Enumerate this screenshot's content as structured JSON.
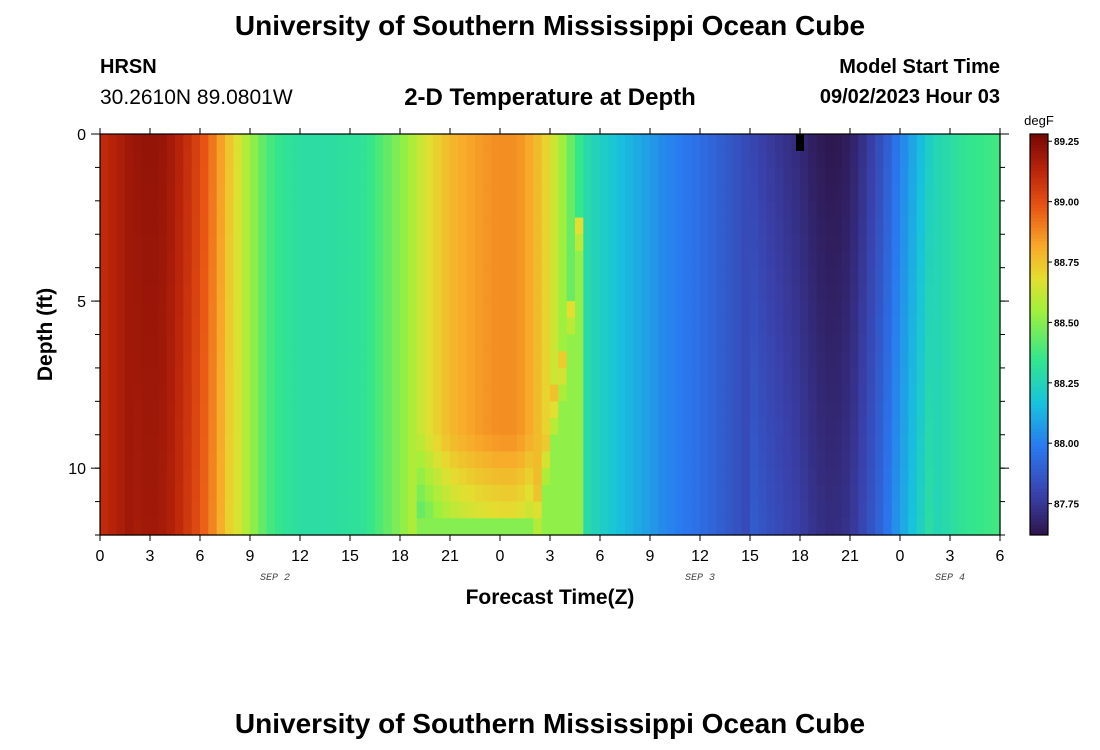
{
  "header": {
    "title_top": "University of Southern Mississippi Ocean Cube",
    "station": "HRSN",
    "coords": "30.2610N  89.0801W",
    "model_start_label": "Model Start Time",
    "model_start_value": "09/02/2023 Hour 03",
    "title_bottom": "University of Southern Mississippi Ocean Cube"
  },
  "chart_data": {
    "type": "heatmap",
    "title": "2-D Temperature at Depth",
    "xlabel": "Forecast Time(Z)",
    "ylabel": "Depth (ft)",
    "x_hours_range": [
      0,
      54
    ],
    "x_tick_labels": [
      "0",
      "3",
      "6",
      "9",
      "12",
      "15",
      "18",
      "21",
      "0",
      "3",
      "6",
      "9",
      "12",
      "15",
      "18",
      "21",
      "0",
      "3",
      "6"
    ],
    "date_labels": [
      {
        "label": "SEP 2",
        "hour": 10.5
      },
      {
        "label": "SEP 3",
        "hour": 36
      },
      {
        "label": "SEP 4",
        "hour": 51
      }
    ],
    "y_range": [
      0,
      12
    ],
    "y_tick_labels": [
      "0",
      "5",
      "10"
    ],
    "y_tick_values": [
      0,
      5,
      10
    ],
    "colorbar": {
      "unit": "degF",
      "min": 87.62,
      "max": 89.28,
      "tick_labels": [
        "87.75",
        "88.00",
        "88.25",
        "88.50",
        "88.75",
        "89.00",
        "89.25"
      ],
      "tick_values": [
        87.75,
        88.0,
        88.25,
        88.5,
        88.75,
        89.0,
        89.25
      ]
    },
    "surface_temperature_profile": {
      "hours": [
        0,
        1,
        2,
        3,
        4,
        5,
        6,
        7,
        8,
        9,
        10,
        11,
        12,
        14,
        16,
        17,
        18,
        19,
        20,
        21,
        22,
        23,
        24,
        25,
        26,
        27,
        28,
        28.5,
        29,
        30,
        32,
        34,
        36,
        38,
        40,
        42,
        43,
        44,
        45,
        46,
        47,
        48,
        49,
        50,
        52,
        54
      ],
      "temps": [
        89.1,
        89.15,
        89.2,
        89.22,
        89.2,
        89.12,
        89.02,
        88.88,
        88.7,
        88.55,
        88.4,
        88.33,
        88.3,
        88.3,
        88.33,
        88.42,
        88.5,
        88.6,
        88.7,
        88.78,
        88.82,
        88.85,
        88.87,
        88.87,
        88.8,
        88.68,
        88.5,
        88.4,
        88.3,
        88.23,
        88.12,
        88.02,
        87.95,
        87.86,
        87.77,
        87.7,
        87.65,
        87.63,
        87.66,
        87.75,
        87.86,
        88.0,
        88.12,
        88.25,
        88.34,
        88.38
      ]
    },
    "warm_core": {
      "peak_temp": 88.87,
      "boundary_depth_ft": [
        [
          0,
          11.5
        ],
        [
          26,
          11.5
        ],
        [
          27,
          8.3
        ],
        [
          28,
          6
        ],
        [
          28.5,
          3.5
        ],
        [
          29,
          1
        ]
      ]
    },
    "marker_hour": 42
  }
}
